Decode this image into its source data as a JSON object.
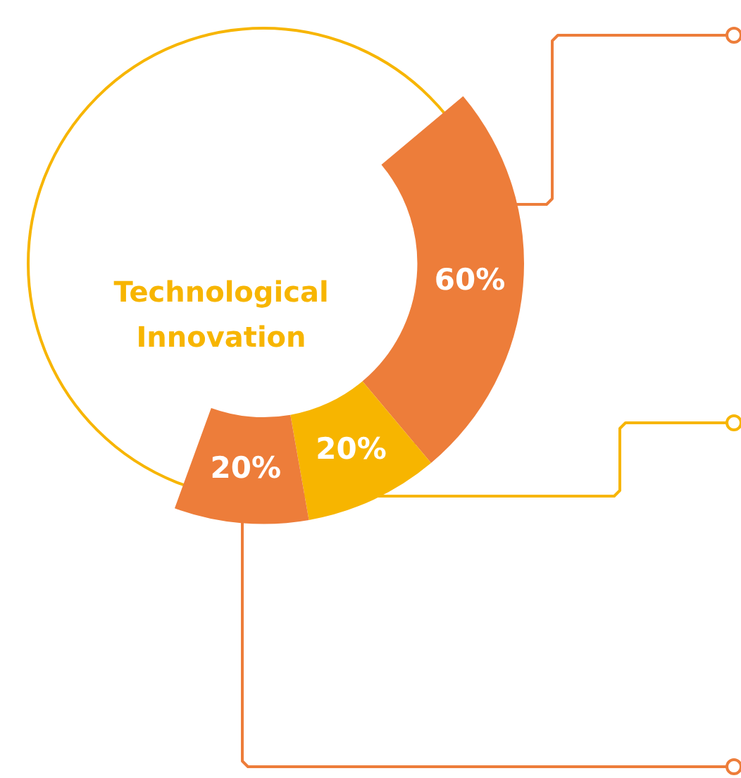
{
  "chart_data": {
    "type": "donut",
    "title": "Technological Innovation",
    "categories": [
      null,
      null,
      null
    ],
    "values": [
      60,
      20,
      20
    ],
    "colors": [
      "#ed7d3a",
      "#f7b500",
      "#ed7d3a"
    ],
    "value_labels": [
      "60%",
      "20%",
      "20%"
    ]
  }
}
